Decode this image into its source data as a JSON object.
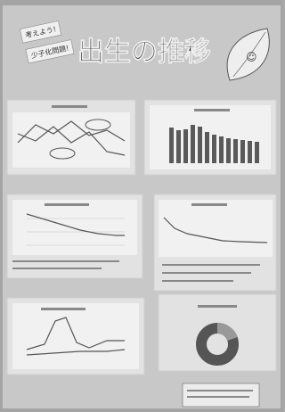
{
  "header": {
    "title": "出生の推移"
  },
  "tags": [
    "考えよう!",
    "少子化問題!"
  ]
}
